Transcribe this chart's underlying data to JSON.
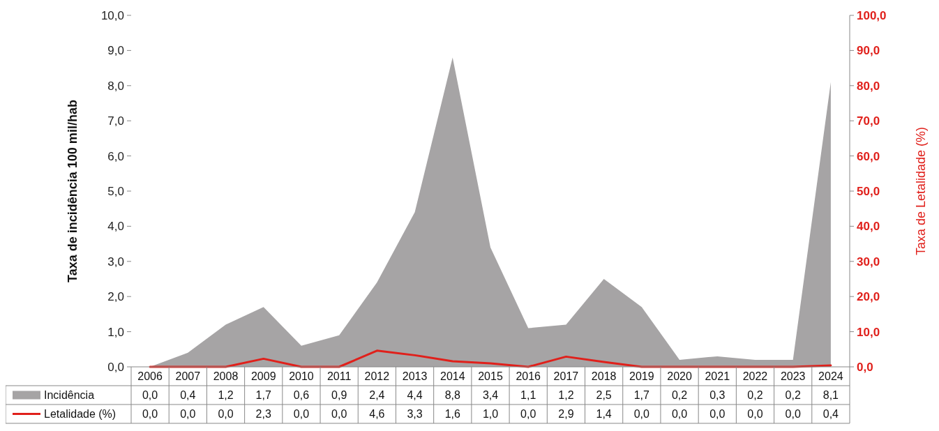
{
  "chart_data": {
    "type": "area",
    "categories": [
      "2006",
      "2007",
      "2008",
      "2009",
      "2010",
      "2011",
      "2012",
      "2013",
      "2014",
      "2015",
      "2016",
      "2017",
      "2018",
      "2019",
      "2020",
      "2021",
      "2022",
      "2023",
      "2024"
    ],
    "ylabel": "Taxa de incidência 100 mil/hab",
    "y2label": "Taxa de Letalidade (%)",
    "ylim": [
      0,
      10
    ],
    "yticks": [
      {
        "value": 0,
        "label": "0,0"
      },
      {
        "value": 1,
        "label": "1,0"
      },
      {
        "value": 2,
        "label": "2,0"
      },
      {
        "value": 3,
        "label": "3,0"
      },
      {
        "value": 4,
        "label": "4,0"
      },
      {
        "value": 5,
        "label": "5,0"
      },
      {
        "value": 6,
        "label": "6,0"
      },
      {
        "value": 7,
        "label": "7,0"
      },
      {
        "value": 8,
        "label": "8,0"
      },
      {
        "value": 9,
        "label": "9,0"
      },
      {
        "value": 10,
        "label": "10,0"
      }
    ],
    "y2lim": [
      0,
      100
    ],
    "y2ticks": [
      {
        "value": 0,
        "label": "0,0"
      },
      {
        "value": 10,
        "label": "10,0"
      },
      {
        "value": 20,
        "label": "20,0"
      },
      {
        "value": 30,
        "label": "30,0"
      },
      {
        "value": 40,
        "label": "40,0"
      },
      {
        "value": 50,
        "label": "50,0"
      },
      {
        "value": 60,
        "label": "60,0"
      },
      {
        "value": 70,
        "label": "70,0"
      },
      {
        "value": 80,
        "label": "80,0"
      },
      {
        "value": 90,
        "label": "90,0"
      },
      {
        "value": 100,
        "label": "100,0"
      }
    ],
    "legend": "bottom",
    "series": [
      {
        "name": "Incidência",
        "color": "#a6a4a5",
        "values": [
          0.0,
          0.4,
          1.2,
          1.7,
          0.6,
          0.9,
          2.4,
          4.4,
          8.8,
          3.4,
          1.1,
          1.2,
          2.5,
          1.7,
          0.2,
          0.3,
          0.2,
          0.2,
          8.1
        ],
        "value_labels": [
          "0,0",
          "0,4",
          "1,2",
          "1,7",
          "0,6",
          "0,9",
          "2,4",
          "4,4",
          "8,8",
          "3,4",
          "1,1",
          "1,2",
          "2,5",
          "1,7",
          "0,2",
          "0,3",
          "0,2",
          "0,2",
          "8,1"
        ]
      },
      {
        "name": "Letalidade (%)",
        "type": "line",
        "axis": "y2",
        "color": "#e0201b",
        "values": [
          0.0,
          0.0,
          0.0,
          2.3,
          0.0,
          0.0,
          4.6,
          3.3,
          1.6,
          1.0,
          0.0,
          2.9,
          1.4,
          0.0,
          0.0,
          0.0,
          0.0,
          0.0,
          0.4
        ],
        "value_labels": [
          "0,0",
          "0,0",
          "0,0",
          "2,3",
          "0,0",
          "0,0",
          "4,6",
          "3,3",
          "1,6",
          "1,0",
          "0,0",
          "2,9",
          "1,4",
          "0,0",
          "0,0",
          "0,0",
          "0,0",
          "0,0",
          "0,4"
        ]
      }
    ]
  }
}
